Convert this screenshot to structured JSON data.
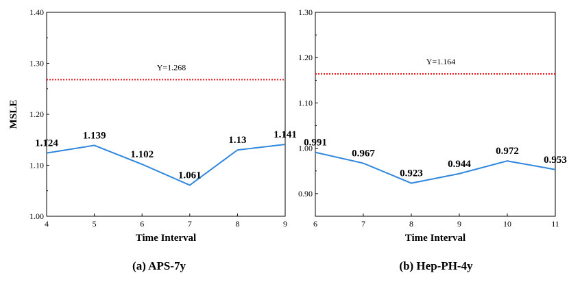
{
  "chart_data": [
    {
      "type": "line",
      "caption": "(a) APS-7y",
      "xlabel": "Time Interval",
      "ylabel": "MSLE",
      "x": [
        4,
        5,
        6,
        7,
        8,
        9
      ],
      "values": [
        1.124,
        1.139,
        1.102,
        1.061,
        1.13,
        1.141
      ],
      "data_labels": [
        "1.124",
        "1.139",
        "1.102",
        "1.061",
        "1.13",
        "1.141"
      ],
      "xlim": [
        4,
        9
      ],
      "ylim": [
        1.0,
        1.4
      ],
      "xticks": [
        "4",
        "5",
        "6",
        "7",
        "8",
        "9"
      ],
      "yticks": [
        1.0,
        1.1,
        1.2,
        1.3,
        1.4
      ],
      "ytick_labels": [
        "1.00",
        "1.10",
        "1.20",
        "1.30",
        "1.40"
      ],
      "reference_line": {
        "y": 1.268,
        "label": "Y=1.268",
        "color": "#e8141c",
        "style": "dotted"
      },
      "line_color": "#2e86de"
    },
    {
      "type": "line",
      "caption": "(b) Hep-PH-4y",
      "xlabel": "Time Interval",
      "ylabel": "",
      "x": [
        6,
        7,
        8,
        9,
        10,
        11
      ],
      "values": [
        0.991,
        0.967,
        0.923,
        0.944,
        0.972,
        0.953
      ],
      "data_labels": [
        "0.991",
        "0.967",
        "0.923",
        "0.944",
        "0.972",
        "0.953"
      ],
      "xlim": [
        6,
        11
      ],
      "ylim": [
        0.85,
        1.3
      ],
      "xticks": [
        "6",
        "7",
        "8",
        "9",
        "10",
        "11"
      ],
      "yticks": [
        0.9,
        1.0,
        1.1,
        1.2,
        1.3
      ],
      "ytick_labels": [
        "0.90",
        "1.00",
        "1.10",
        "1.20",
        "1.30"
      ],
      "reference_line": {
        "y": 1.164,
        "label": "Y=1.164",
        "color": "#e8141c",
        "style": "dotted"
      },
      "line_color": "#2e86de"
    }
  ]
}
